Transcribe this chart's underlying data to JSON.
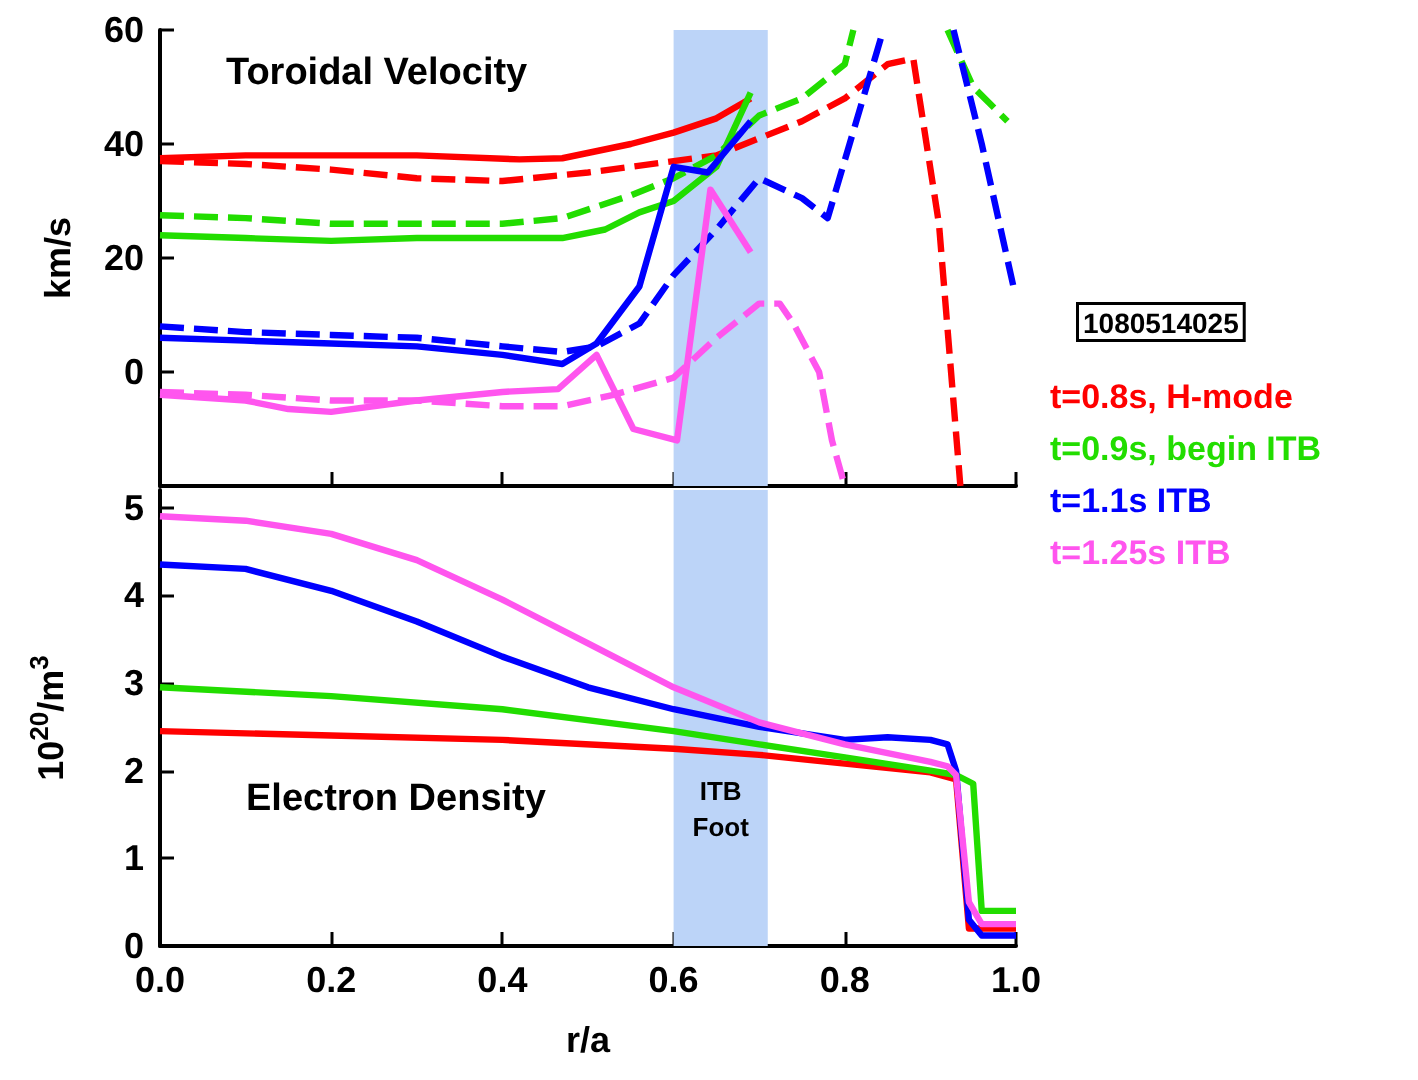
{
  "chart_data": [
    {
      "type": "line",
      "title": "Toroidal Velocity",
      "ylabel": "km/s",
      "xlim": [
        0,
        1
      ],
      "xticks": [
        {
          "value": 0,
          "label": null
        },
        {
          "value": 0.2,
          "label": null
        },
        {
          "value": 0.4,
          "label": null
        },
        {
          "value": 0.6,
          "label": null
        },
        {
          "value": 0.8,
          "label": null
        },
        {
          "value": 1,
          "label": null
        }
      ],
      "ylim": [
        -20,
        60
      ],
      "yticks": [
        0,
        20,
        40,
        60
      ],
      "tick_labels": "y",
      "grid": false,
      "marker": "none",
      "line_style": "solid",
      "bands": [
        {
          "axis": "x",
          "from": 0.6,
          "to": 0.71,
          "color": "#bcd4f8"
        }
      ],
      "series": [
        {
          "color": "#ff0000",
          "x": [
            0,
            0.1,
            0.2,
            0.3,
            0.42,
            0.47,
            0.55,
            0.6,
            0.65,
            0.69
          ],
          "values": [
            37.5,
            38,
            38,
            38,
            37.3,
            37.5,
            40,
            42,
            44.5,
            48
          ]
        },
        {
          "color": "#ff0000",
          "line_style": "dashed",
          "x": [
            0,
            0.1,
            0.2,
            0.3,
            0.4,
            0.5,
            0.6,
            0.65,
            0.7,
            0.75,
            0.8,
            0.85,
            0.88,
            0.91,
            0.935
          ],
          "values": [
            37,
            36.5,
            35.5,
            34,
            33.5,
            35,
            37,
            38,
            41,
            44,
            48,
            54,
            55,
            26,
            -20
          ]
        },
        {
          "color": "#22dd00",
          "x": [
            0,
            0.1,
            0.2,
            0.3,
            0.4,
            0.47,
            0.52,
            0.56,
            0.6,
            0.65,
            0.69
          ],
          "values": [
            24,
            23.5,
            23,
            23.5,
            23.5,
            23.5,
            25,
            28,
            30,
            36,
            49
          ]
        },
        {
          "color": "#22dd00",
          "line_style": "dashed",
          "x": [
            0,
            0.1,
            0.2,
            0.3,
            0.4,
            0.47,
            0.55,
            0.6,
            0.65,
            0.7,
            0.75,
            0.8,
            0.81,
            0.86,
            0.92,
            0.95,
            0.99
          ],
          "values": [
            27.5,
            27,
            26,
            26,
            26,
            27,
            31,
            34,
            38,
            45,
            48,
            54,
            60,
            null,
            60,
            50,
            44
          ]
        },
        {
          "color": "#0000ff",
          "x": [
            0,
            0.1,
            0.2,
            0.3,
            0.4,
            0.47,
            0.51,
            0.56,
            0.6,
            0.64,
            0.69
          ],
          "values": [
            6,
            5.5,
            5,
            4.5,
            3,
            1.4,
            5,
            15,
            36,
            35,
            44
          ]
        },
        {
          "color": "#0000ff",
          "line_style": "dashed",
          "x": [
            0,
            0.1,
            0.2,
            0.3,
            0.4,
            0.47,
            0.51,
            0.56,
            0.6,
            0.65,
            0.7,
            0.75,
            0.78,
            0.845,
            0.89,
            0.927,
            0.96,
            0.997
          ],
          "values": [
            8,
            7,
            6.5,
            6,
            4.5,
            3.5,
            4.5,
            8.5,
            17,
            25,
            34,
            30.5,
            27,
            60,
            null,
            60,
            40,
            15
          ]
        },
        {
          "color": "#ff55ee",
          "x": [
            0,
            0.1,
            0.15,
            0.2,
            0.3,
            0.4,
            0.465,
            0.51,
            0.553,
            0.604,
            0.643,
            0.69
          ],
          "values": [
            -4,
            -5,
            -6.5,
            -7,
            -5,
            -3.5,
            -3,
            3,
            -10,
            -12,
            32,
            21
          ]
        },
        {
          "color": "#ff55ee",
          "line_style": "dashed",
          "x": [
            0,
            0.1,
            0.2,
            0.3,
            0.4,
            0.47,
            0.53,
            0.6,
            0.65,
            0.7,
            0.724,
            0.74,
            0.77,
            0.785,
            0.8
          ],
          "values": [
            -3.5,
            -4,
            -5,
            -5,
            -6,
            -6,
            -4,
            -1,
            6,
            12,
            12,
            8.5,
            0,
            -12,
            -20
          ]
        }
      ]
    },
    {
      "type": "line",
      "title": "Electron Density",
      "xlabel": "r/a",
      "ylabel": "10$^{20}$/m$^{3}$",
      "legend_title": "1080514025",
      "legend": "right",
      "xlim": [
        0,
        1
      ],
      "xticks": [
        {
          "value": 0,
          "label": "0.0"
        },
        {
          "value": 0.2,
          "label": "0.2"
        },
        {
          "value": 0.4,
          "label": "0.4"
        },
        {
          "value": 0.6,
          "label": "0.6"
        },
        {
          "value": 0.8,
          "label": "0.8"
        },
        {
          "value": 1,
          "label": "1.0"
        }
      ],
      "ylim": [
        0,
        5.2
      ],
      "yticks": [
        0,
        1,
        2,
        3,
        4,
        5
      ],
      "grid": false,
      "marker": "none",
      "line_style": "solid",
      "bands": [
        {
          "axis": "x",
          "from": 0.6,
          "to": 0.71,
          "label": "ITB Foot",
          "color": "#bcd4f8"
        }
      ],
      "series": [
        {
          "name": "t=0.8s, H-mode",
          "color": "#ff0000",
          "x": [
            0,
            0.2,
            0.4,
            0.6,
            0.7,
            0.8,
            0.9,
            0.93,
            0.945,
            0.96,
            1
          ],
          "values": [
            2.45,
            2.4,
            2.35,
            2.25,
            2.18,
            2.08,
            1.98,
            1.9,
            0.2,
            0.2,
            0.2
          ]
        },
        {
          "name": "t=0.9s, begin ITB",
          "color": "#22dd00",
          "x": [
            0,
            0.2,
            0.4,
            0.6,
            0.7,
            0.8,
            0.9,
            0.93,
            0.95,
            0.96,
            1
          ],
          "values": [
            2.95,
            2.85,
            2.7,
            2.45,
            2.3,
            2.15,
            2,
            1.95,
            1.85,
            0.4,
            0.4
          ]
        },
        {
          "name": "t=1.1s ITB",
          "color": "#0000ff",
          "x": [
            0,
            0.1,
            0.2,
            0.3,
            0.4,
            0.5,
            0.6,
            0.7,
            0.8,
            0.85,
            0.9,
            0.92,
            0.93,
            0.945,
            0.96,
            1
          ],
          "values": [
            4.35,
            4.3,
            4.05,
            3.7,
            3.3,
            2.95,
            2.7,
            2.5,
            2.35,
            2.38,
            2.35,
            2.3,
            2,
            0.3,
            0.12,
            0.12
          ]
        },
        {
          "name": "t=1.25s ITB",
          "color": "#ff55ee",
          "x": [
            0,
            0.1,
            0.2,
            0.3,
            0.4,
            0.5,
            0.6,
            0.7,
            0.8,
            0.9,
            0.92,
            0.93,
            0.945,
            0.96,
            1
          ],
          "values": [
            4.9,
            4.85,
            4.7,
            4.4,
            3.95,
            3.45,
            2.95,
            2.55,
            2.3,
            2.1,
            2.05,
            1.95,
            0.5,
            0.25,
            0.25
          ]
        }
      ]
    }
  ]
}
